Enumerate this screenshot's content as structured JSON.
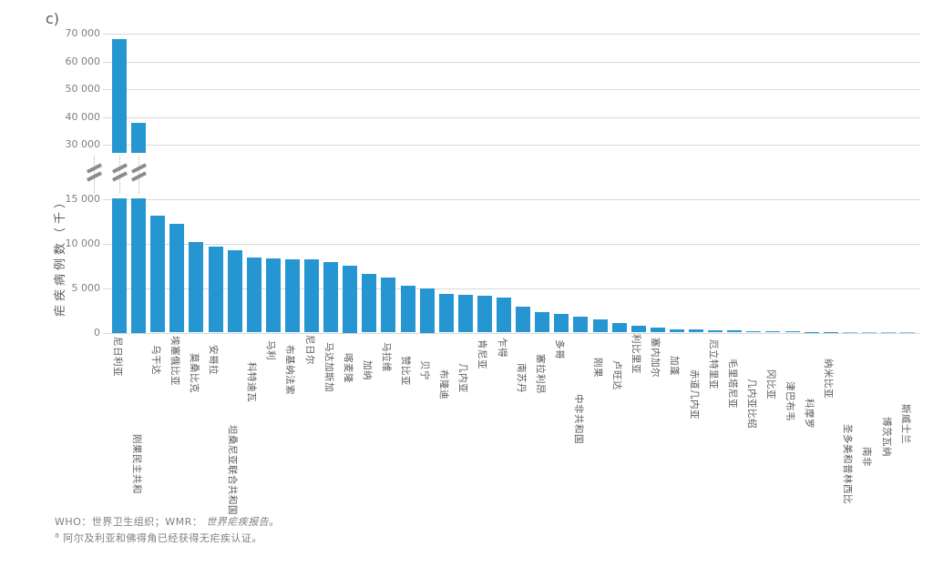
{
  "panel_label": "c)",
  "chart_data": {
    "type": "bar",
    "title": "",
    "xlabel": "",
    "ylabel": "疟疾病例数（千）",
    "grid": true,
    "legend": false,
    "bar_color": "#2596d2",
    "grid_color": "#d9d9d9",
    "tick_color": "#7f7f7f",
    "label_color": "#595959",
    "axis_break": {
      "has_break": true,
      "upper_range": [
        30000,
        70000
      ],
      "lower_range": [
        0,
        15000
      ],
      "truncated_bars": [
        "尼日利亚",
        "刚果民主共和"
      ]
    },
    "upper_axis": {
      "tick_labels": [
        "70 000",
        "60 000",
        "50 000",
        "40 000",
        "30 000"
      ],
      "tick_values": [
        70000,
        60000,
        50000,
        40000,
        30000
      ]
    },
    "lower_axis": {
      "tick_labels": [
        "15 000",
        "10 000",
        "5 000",
        "0"
      ],
      "tick_values": [
        15000,
        10000,
        5000,
        0
      ]
    },
    "categories": [
      "尼日利亚",
      "刚果民主共和",
      "乌干达",
      "埃塞俄比亚",
      "莫桑比克",
      "安哥拉",
      "坦桑尼亚联合共和国",
      "科特迪瓦",
      "马利",
      "布基纳法索",
      "尼日尔",
      "马达加斯加",
      "喀麦隆",
      "加纳",
      "马拉维",
      "赞比亚",
      "贝宁",
      "布隆迪",
      "几内亚",
      "肯尼亚",
      "乍得",
      "南苏丹",
      "塞拉利昂",
      "多哥",
      "中非共和国",
      "刚果",
      "卢旺达",
      "利比里亚",
      "塞内加尔",
      "加蓬",
      "赤道几内亚",
      "厄立特里亚",
      "毛里塔尼亚",
      "几内亚比绍",
      "冈比亚",
      "津巴布韦",
      "科摩罗",
      "纳米比亚",
      "圣多美和普林西比",
      "南非",
      "博茨瓦纳",
      "斯威士兰"
    ],
    "values": [
      68000,
      38000,
      13100,
      12200,
      10200,
      9600,
      9200,
      8400,
      8300,
      8250,
      8200,
      7900,
      7500,
      6600,
      6200,
      5300,
      5000,
      4350,
      4200,
      4100,
      3950,
      2900,
      2300,
      2100,
      1800,
      1500,
      1050,
      800,
      600,
      400,
      400,
      300,
      250,
      200,
      150,
      150,
      100,
      100,
      60,
      50,
      30,
      20
    ],
    "label_offsets": [
      3,
      110,
      12,
      2,
      21,
      12,
      100,
      31,
      7,
      12,
      1,
      9,
      21,
      29,
      9,
      24,
      29,
      39,
      32,
      6,
      4,
      32,
      22,
      6,
      66,
      26,
      29,
      0,
      4,
      24,
      39,
      6,
      27,
      49,
      39,
      52,
      71,
      27,
      99,
      124,
      91,
      77
    ]
  },
  "footnotes": {
    "line1_prefix": "WHO：世界卫生组织；WMR：  ",
    "line1_italic": "世界疟疾报告",
    "line1_suffix": "。",
    "line2_marker": "a",
    "line2_text": " 阿尔及利亚和佛得角已经获得无疟疾认证。"
  }
}
